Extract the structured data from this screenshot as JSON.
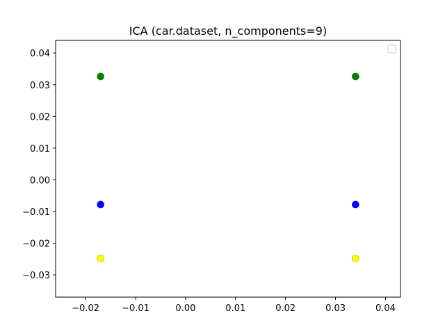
{
  "chart_data": {
    "type": "scatter",
    "title": "ICA (car.dataset, n_components=9)",
    "xlabel": "",
    "ylabel": "",
    "xlim": [
      -0.026,
      0.043
    ],
    "ylim": [
      -0.037,
      0.044
    ],
    "x_ticks": [
      -0.02,
      -0.01,
      0.0,
      0.01,
      0.02,
      0.03,
      0.04
    ],
    "x_tick_labels": [
      "−0.02",
      "−0.01",
      "0.00",
      "0.01",
      "0.02",
      "0.03",
      "0.04"
    ],
    "y_ticks": [
      -0.03,
      -0.02,
      -0.01,
      0.0,
      0.01,
      0.02,
      0.03,
      0.04
    ],
    "y_tick_labels": [
      "−0.03",
      "−0.02",
      "−0.01",
      "0.00",
      "0.01",
      "0.02",
      "0.03",
      "0.04"
    ],
    "grid": false,
    "legend": {
      "placement": "top-right",
      "entries": []
    },
    "series": [
      {
        "color": "#008000",
        "points": [
          [
            -0.017,
            0.0326
          ],
          [
            0.034,
            0.0326
          ]
        ]
      },
      {
        "color": "#0000ff",
        "points": [
          [
            -0.017,
            -0.0078
          ],
          [
            0.034,
            -0.0078
          ]
        ]
      },
      {
        "color": "#ffff00",
        "points": [
          [
            -0.017,
            -0.0248
          ],
          [
            0.034,
            -0.0248
          ]
        ]
      }
    ]
  }
}
